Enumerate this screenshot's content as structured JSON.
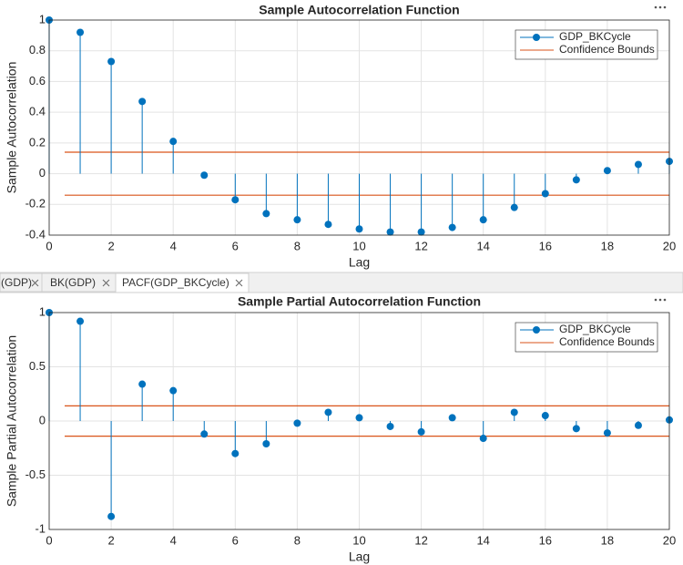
{
  "tabs": [
    "(GDP)",
    "BK(GDP)",
    "PACF(GDP_BKCycle)"
  ],
  "chart_data": [
    {
      "type": "stem",
      "title": "Sample Autocorrelation Function",
      "xlabel": "Lag",
      "ylabel": "Sample Autocorrelation",
      "x": [
        0,
        1,
        2,
        3,
        4,
        5,
        6,
        7,
        8,
        9,
        10,
        11,
        12,
        13,
        14,
        15,
        16,
        17,
        18,
        19,
        20
      ],
      "series": [
        {
          "name": "GDP_BKCycle",
          "color": "#0072bd",
          "values": [
            1,
            0.92,
            0.73,
            0.47,
            0.21,
            -0.01,
            -0.17,
            -0.26,
            -0.3,
            -0.33,
            -0.36,
            -0.38,
            -0.38,
            -0.35,
            -0.3,
            -0.22,
            -0.13,
            -0.04,
            0.02,
            0.06,
            0.08
          ]
        }
      ],
      "bounds": {
        "name": "Confidence Bounds",
        "color": "#d95319",
        "values": [
          0.14,
          -0.14
        ]
      },
      "xlim": [
        0,
        20
      ],
      "xticks": [
        0,
        2,
        4,
        6,
        8,
        10,
        12,
        14,
        16,
        18,
        20
      ],
      "ylim": [
        -0.4,
        1
      ],
      "yticks": [
        -0.4,
        -0.2,
        0,
        0.2,
        0.4,
        0.6,
        0.8,
        1
      ],
      "grid": true,
      "legend": "upper right"
    },
    {
      "type": "stem",
      "title": "Sample Partial Autocorrelation Function",
      "xlabel": "Lag",
      "ylabel": "Sample Partial Autocorrelation",
      "x": [
        0,
        1,
        2,
        3,
        4,
        5,
        6,
        7,
        8,
        9,
        10,
        11,
        12,
        13,
        14,
        15,
        16,
        17,
        18,
        19,
        20
      ],
      "series": [
        {
          "name": "GDP_BKCycle",
          "color": "#0072bd",
          "values": [
            1,
            0.92,
            -0.88,
            0.34,
            0.28,
            -0.12,
            -0.3,
            -0.21,
            -0.02,
            0.08,
            0.03,
            -0.05,
            -0.1,
            0.03,
            -0.16,
            0.08,
            0.05,
            -0.07,
            -0.11,
            -0.04,
            0.01
          ]
        }
      ],
      "bounds": {
        "name": "Confidence Bounds",
        "color": "#d95319",
        "values": [
          0.14,
          -0.14
        ]
      },
      "xlim": [
        0,
        20
      ],
      "xticks": [
        0,
        2,
        4,
        6,
        8,
        10,
        12,
        14,
        16,
        18,
        20
      ],
      "ylim": [
        -1,
        1
      ],
      "yticks": [
        -1,
        -0.5,
        0,
        0.5,
        1
      ],
      "grid": true,
      "legend": "upper right"
    }
  ]
}
